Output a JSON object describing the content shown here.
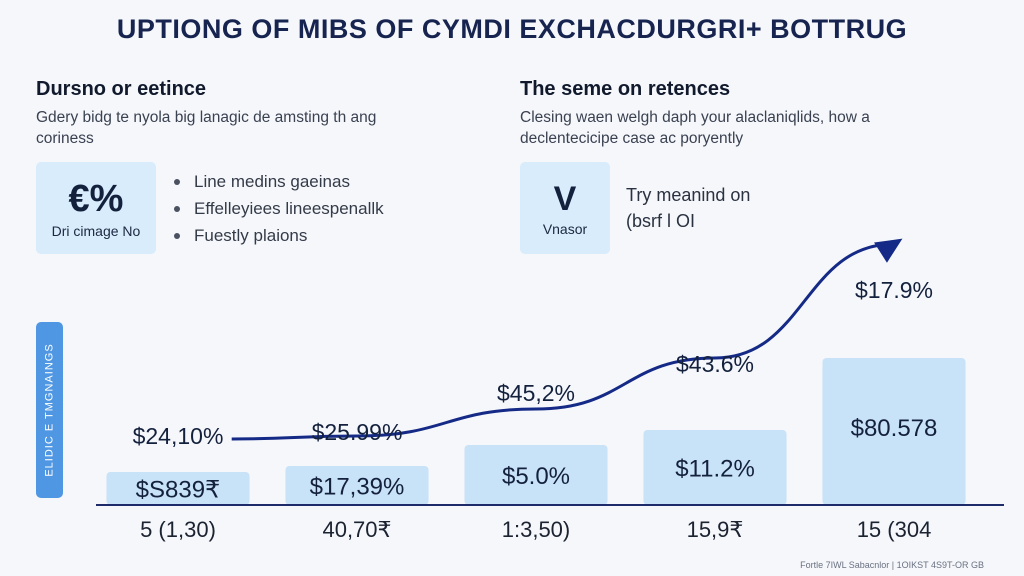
{
  "title": "UPTIONG OF MIBS OF CYMDI EXCHACDURGRI+ BOTTRUG",
  "left_section": {
    "title": "Dursno or eetince",
    "body": [
      "Gdery bidg te nyola big lanagic de amsting th ang",
      "coriness"
    ],
    "card": {
      "big": "€%",
      "small": "Dri cimage No"
    },
    "bullets": [
      "Line medins gaeinas",
      "Effelleyiees lineespenallk",
      "Fuestly plaions"
    ]
  },
  "right_section": {
    "title": "The seme on retences",
    "body": [
      "Clesing waen welgh daph your alaclaniqlids, how a",
      "declentecicipe case ac poryently"
    ],
    "card": {
      "big": "V",
      "small": "Vnasor"
    },
    "note": [
      "Try meanind on",
      "(bsrf l OI"
    ]
  },
  "side_label": "ELIDIC E TMGNAINGS",
  "footer": "Fortle 7IWL Sabacnlor | 1OIKST 4S9T-OR GB",
  "colors": {
    "bar": "#c8e2f8",
    "line": "#142a86",
    "axis": "#1e2b6b",
    "side": "#4f97e2"
  },
  "chart_data": {
    "type": "bar",
    "categories": [
      "5 (1,30)",
      "40,70₹",
      "1:3,50)",
      "15,9₹",
      "15 (304"
    ],
    "values": [
      11,
      13,
      20,
      25,
      49
    ],
    "bar_labels": [
      "$S839₹",
      "$17,39%",
      "$5.0%",
      "$11.2%",
      "$80.578"
    ],
    "top_labels": [
      "$24,10%",
      "$25.99%",
      "$45,2%",
      "$43.6%",
      "$17.9%"
    ],
    "trend_line": {
      "x": [
        0.3,
        1.0,
        2.0,
        3.0,
        4.0
      ],
      "y": [
        22,
        23,
        32,
        49,
        87
      ]
    },
    "ylim": [
      0,
      100
    ],
    "grid": false,
    "legend": "none"
  }
}
